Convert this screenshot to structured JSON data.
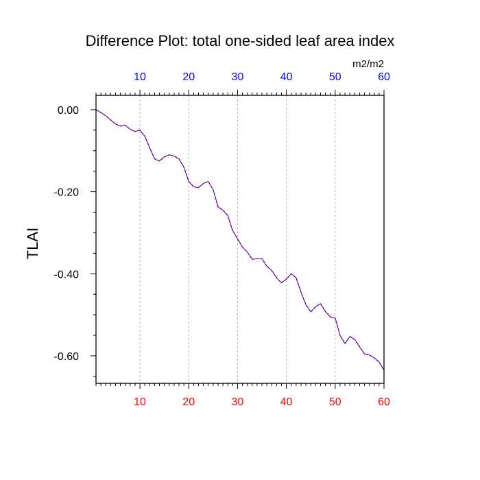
{
  "chart_data": {
    "type": "line",
    "title": "Difference Plot: total one-sided leaf area index",
    "units": "m2/m2",
    "ylabel": "TLAI",
    "xlim": [
      1,
      60
    ],
    "ylim": [
      -0.667,
      0.035
    ],
    "x_ticks": [
      10,
      20,
      30,
      40,
      50,
      60
    ],
    "x_tick_labels": [
      "10",
      "20",
      "30",
      "40",
      "50",
      "60"
    ],
    "y_ticks": [
      0.0,
      -0.2,
      -0.4,
      -0.6
    ],
    "y_tick_labels": [
      "0.00",
      "-0.20",
      "-0.40",
      "-0.60"
    ],
    "grid": "vertical dotted at major x ticks",
    "colors": {
      "bottom_axis": "#ff0000",
      "top_axis": "#0000ff",
      "line_primary": "#0000ff",
      "line_secondary": "#ff0000"
    },
    "series": [
      {
        "x": [
          1,
          2,
          3,
          4,
          5,
          6,
          7,
          8,
          9,
          10,
          11,
          12,
          13,
          14,
          15,
          16,
          17,
          18,
          19,
          20,
          21,
          22,
          23,
          24,
          25,
          26,
          27,
          28,
          29,
          30,
          31,
          32,
          33,
          34,
          35,
          36,
          37,
          38,
          39,
          40,
          41,
          42,
          43,
          44,
          45,
          46,
          47,
          48,
          49,
          50,
          51,
          52,
          53,
          54,
          55,
          56,
          57,
          58,
          59,
          60
        ],
        "values": [
          0.0,
          -0.007,
          -0.015,
          -0.025,
          -0.035,
          -0.04,
          -0.038,
          -0.048,
          -0.053,
          -0.05,
          -0.065,
          -0.093,
          -0.12,
          -0.125,
          -0.115,
          -0.11,
          -0.113,
          -0.12,
          -0.14,
          -0.175,
          -0.188,
          -0.19,
          -0.18,
          -0.175,
          -0.195,
          -0.237,
          -0.245,
          -0.258,
          -0.295,
          -0.315,
          -0.335,
          -0.347,
          -0.365,
          -0.363,
          -0.363,
          -0.382,
          -0.392,
          -0.41,
          -0.422,
          -0.413,
          -0.4,
          -0.41,
          -0.445,
          -0.475,
          -0.493,
          -0.48,
          -0.473,
          -0.492,
          -0.505,
          -0.508,
          -0.55,
          -0.57,
          -0.553,
          -0.56,
          -0.578,
          -0.595,
          -0.598,
          -0.605,
          -0.615,
          -0.635
        ]
      }
    ]
  }
}
